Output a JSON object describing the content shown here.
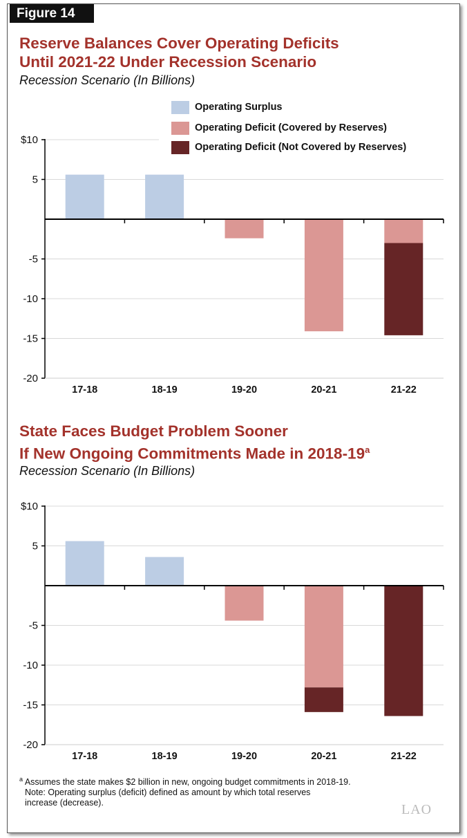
{
  "figure_label": "Figure 14",
  "logo": "LAO",
  "colors": {
    "surplus": "#bccde4",
    "covered": "#db9794",
    "not_covered": "#662526",
    "title": "#a3322b"
  },
  "legend": [
    {
      "label": "Operating Surplus",
      "key": "surplus"
    },
    {
      "label": "Operating Deficit (Covered by Reserves)",
      "key": "covered"
    },
    {
      "label": "Operating Deficit (Not Covered by Reserves)",
      "key": "not_covered"
    }
  ],
  "chart_data": [
    {
      "type": "bar",
      "stacked": true,
      "title_line1": "Reserve Balances Cover Operating Deficits",
      "title_line2": "Until 2021-22 Under Recession Scenario",
      "subtitle": "Recession Scenario (In Billions)",
      "categories": [
        "17-18",
        "18-19",
        "19-20",
        "20-21",
        "21-22"
      ],
      "series": [
        {
          "name": "Operating Surplus",
          "key": "surplus",
          "values": [
            5.6,
            5.6,
            0,
            0,
            0
          ]
        },
        {
          "name": "Operating Deficit (Covered by Reserves)",
          "key": "covered",
          "values": [
            0,
            0,
            -2.4,
            -14.1,
            -3.0
          ]
        },
        {
          "name": "Operating Deficit (Not Covered by Reserves)",
          "key": "not_covered",
          "values": [
            0,
            0,
            0,
            0,
            -11.6
          ]
        }
      ],
      "yticks": [
        10,
        5,
        -5,
        -10,
        -15,
        -20
      ],
      "ytick_labels": [
        "$10",
        "5",
        "-5",
        "-10",
        "-15",
        "-20"
      ],
      "ylim": [
        -20,
        10
      ],
      "legend_position": "top-right"
    },
    {
      "type": "bar",
      "stacked": true,
      "title_line1": "State Faces Budget Problem Sooner",
      "title_line2": "If New Ongoing Commitments Made in 2018-19",
      "title_sup": "a",
      "subtitle": "Recession Scenario (In Billions)",
      "categories": [
        "17-18",
        "18-19",
        "19-20",
        "20-21",
        "21-22"
      ],
      "series": [
        {
          "name": "Operating Surplus",
          "key": "surplus",
          "values": [
            5.6,
            3.6,
            0,
            0,
            0
          ]
        },
        {
          "name": "Operating Deficit (Covered by Reserves)",
          "key": "covered",
          "values": [
            0,
            0,
            -4.4,
            -12.8,
            0
          ]
        },
        {
          "name": "Operating Deficit (Not Covered by Reserves)",
          "key": "not_covered",
          "values": [
            0,
            0,
            0,
            -3.1,
            -16.4
          ]
        }
      ],
      "yticks": [
        10,
        5,
        -5,
        -10,
        -15,
        -20
      ],
      "ytick_labels": [
        "$10",
        "5",
        "-5",
        "-10",
        "-15",
        "-20"
      ],
      "ylim": [
        -20,
        10
      ]
    }
  ],
  "notes": {
    "footnote_marker": "a",
    "footnote": "Assumes the state makes $2 billion in new, ongoing budget commitments in 2018-19.",
    "note_line1": "Note: Operating surplus (deficit) defined as amount by which total reserves",
    "note_line2": "increase (decrease)."
  }
}
